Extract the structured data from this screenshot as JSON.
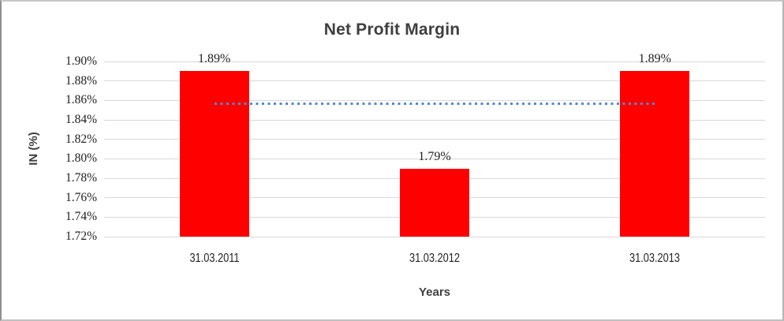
{
  "chart_data": {
    "type": "bar",
    "title": "Net Profit Margin",
    "xlabel": "Years",
    "ylabel": "IN (%)",
    "categories": [
      "31.03.2011",
      "31.03.2012",
      "31.03.2013"
    ],
    "values": [
      1.89,
      1.79,
      1.89
    ],
    "data_labels": [
      "1.89%",
      "1.79%",
      "1.89%"
    ],
    "ylim": [
      1.72,
      1.9
    ],
    "ytick_step": 0.02,
    "ytick_labels": [
      "1.90%",
      "1.88%",
      "1.86%",
      "1.84%",
      "1.82%",
      "1.80%",
      "1.78%",
      "1.76%",
      "1.74%",
      "1.72%"
    ],
    "grid": true,
    "legend": "none",
    "bar_color": "#ff0000",
    "gridline_color": "#d9d9d9",
    "trendline": {
      "style": "dotted",
      "color": "#5189cf",
      "value": 1.8567,
      "from_category_index": 0,
      "to_category_index": 2
    }
  }
}
